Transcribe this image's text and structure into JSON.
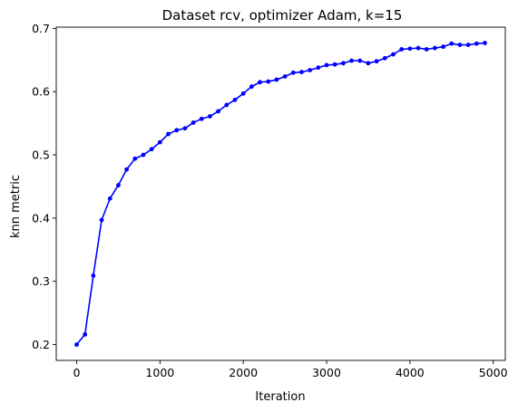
{
  "chart_data": {
    "type": "line",
    "title": "Dataset rcv, optimizer Adam, k=15",
    "xlabel": "Iteration",
    "ylabel": "knn metric",
    "xlim": [
      -245,
      5145
    ],
    "ylim": [
      0.175,
      0.702
    ],
    "xticks": [
      0,
      1000,
      2000,
      3000,
      4000,
      5000
    ],
    "yticks": [
      0.2,
      0.3,
      0.4,
      0.5,
      0.6,
      0.7
    ],
    "grid": false,
    "color": "#0000ff",
    "x": [
      0,
      100,
      200,
      300,
      400,
      500,
      600,
      700,
      800,
      900,
      1000,
      1100,
      1200,
      1300,
      1400,
      1500,
      1600,
      1700,
      1800,
      1900,
      2000,
      2100,
      2200,
      2300,
      2400,
      2500,
      2600,
      2700,
      2800,
      2900,
      3000,
      3100,
      3200,
      3300,
      3400,
      3500,
      3600,
      3700,
      3800,
      3900,
      4000,
      4100,
      4200,
      4300,
      4400,
      4500,
      4600,
      4700,
      4800,
      4900
    ],
    "y": [
      0.2,
      0.216,
      0.309,
      0.397,
      0.431,
      0.452,
      0.477,
      0.494,
      0.5,
      0.509,
      0.52,
      0.533,
      0.539,
      0.542,
      0.551,
      0.557,
      0.561,
      0.569,
      0.579,
      0.587,
      0.597,
      0.608,
      0.615,
      0.616,
      0.619,
      0.624,
      0.63,
      0.631,
      0.634,
      0.638,
      0.642,
      0.643,
      0.645,
      0.649,
      0.649,
      0.645,
      0.648,
      0.653,
      0.659,
      0.667,
      0.668,
      0.669,
      0.667,
      0.669,
      0.671,
      0.676,
      0.674,
      0.674,
      0.676,
      0.677
    ]
  }
}
